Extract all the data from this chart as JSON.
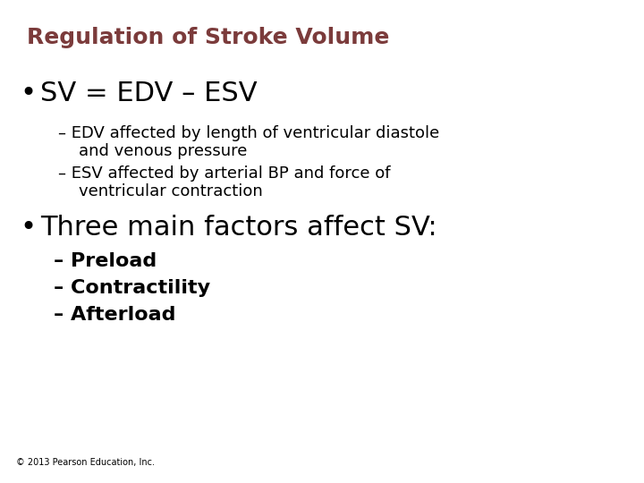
{
  "title": "Regulation of Stroke Volume",
  "title_color": "#7B3B3B",
  "title_fontsize": 18,
  "background_color": "#FFFFFF",
  "bullet1": "SV = EDV – ESV",
  "bullet1_fontsize": 22,
  "sub1a_line1": "– EDV affected by length of ventricular diastole",
  "sub1a_line2": "    and venous pressure",
  "sub1b_line1": "– ESV affected by arterial BP and force of",
  "sub1b_line2": "    ventricular contraction",
  "sub_fontsize": 13,
  "bullet2": "Three main factors affect SV:",
  "bullet2_fontsize": 22,
  "sub2a": "– Preload",
  "sub2b": "– Contractility",
  "sub2c": "– Afterload",
  "sub2_fontsize": 16,
  "footer": "© 2013 Pearson Education, Inc.",
  "footer_fontsize": 7,
  "text_color": "#000000"
}
